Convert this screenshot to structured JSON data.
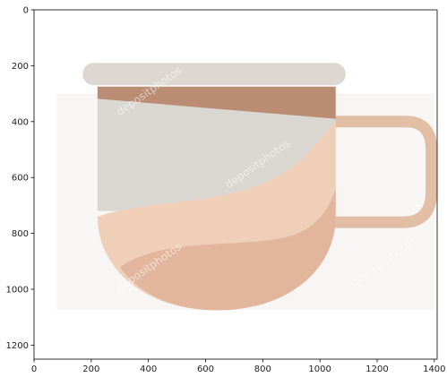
{
  "chart_data": {
    "type": "image",
    "title": "",
    "xlabel": "",
    "ylabel": "",
    "xlim": [
      0,
      1410
    ],
    "ylim": [
      1250,
      0
    ],
    "x_ticks": [
      0,
      200,
      400,
      600,
      800,
      1000,
      1200,
      1400
    ],
    "y_ticks": [
      0,
      200,
      400,
      600,
      800,
      1000,
      1200
    ],
    "watermark_text": "depositphotos",
    "image_extent": {
      "x": [
        0,
        1410
      ],
      "y": [
        0,
        1250
      ]
    },
    "picture_bounds": {
      "x": [
        160,
        1400
      ],
      "y": [
        200,
        1075
      ]
    },
    "colors": {
      "rim": "#dcd7d1",
      "coffee": "#b98c73",
      "upper_body": "#dad6d1",
      "cream_wave": "#f0cfb8",
      "lower_body": "#e2b59d",
      "handle": "#e2bea4",
      "photo_bg": "#f7f6f5"
    }
  }
}
